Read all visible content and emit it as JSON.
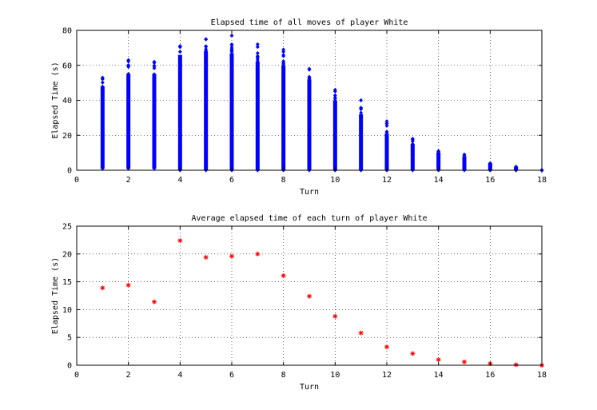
{
  "chart_data": [
    {
      "type": "scatter",
      "title": "Elapsed time of all moves of player White",
      "xlabel": "Turn",
      "ylabel": "Elapsed Time (s)",
      "xlim": [
        0,
        18
      ],
      "ylim": [
        0,
        80
      ],
      "xticks": [
        0,
        2,
        4,
        6,
        8,
        10,
        12,
        14,
        16,
        18
      ],
      "yticks": [
        0,
        20,
        40,
        60,
        80
      ],
      "grid": true,
      "marker": "diamond",
      "color": "#0000ff",
      "series": [
        {
          "turns": [
            1,
            2,
            3,
            4,
            5,
            6,
            7,
            8,
            9,
            10,
            11,
            12,
            13,
            14,
            15,
            16,
            17,
            18
          ],
          "min": [
            1,
            1,
            1,
            0,
            0,
            0,
            0,
            0,
            0,
            0,
            0,
            0,
            0,
            0,
            0,
            0,
            0,
            0
          ],
          "max": [
            53,
            63,
            62,
            71,
            75,
            77,
            72,
            69,
            58,
            46,
            40,
            28,
            18,
            11,
            9,
            4,
            2,
            0
          ],
          "dense_top": [
            48,
            55,
            55,
            66,
            68,
            67,
            62,
            60,
            52,
            40,
            32,
            21,
            15,
            10,
            8,
            4,
            2,
            0
          ]
        }
      ]
    },
    {
      "type": "scatter",
      "title": "Average elapsed time of each turn of player White",
      "xlabel": "Turn",
      "ylabel": "Elapsed Time (s)",
      "xlim": [
        0,
        18
      ],
      "ylim": [
        0,
        25
      ],
      "xticks": [
        0,
        2,
        4,
        6,
        8,
        10,
        12,
        14,
        16,
        18
      ],
      "yticks": [
        0,
        5,
        10,
        15,
        20,
        25
      ],
      "grid": true,
      "marker": "asterisk",
      "color": "#ff0000",
      "x": [
        1,
        2,
        3,
        4,
        5,
        6,
        7,
        8,
        9,
        10,
        11,
        12,
        13,
        14,
        15,
        16,
        17,
        18
      ],
      "y": [
        13.9,
        14.4,
        11.4,
        22.4,
        19.4,
        19.6,
        20.0,
        16.1,
        12.4,
        8.8,
        5.8,
        3.3,
        2.1,
        1.0,
        0.6,
        0.3,
        0.1,
        0.0
      ]
    }
  ]
}
